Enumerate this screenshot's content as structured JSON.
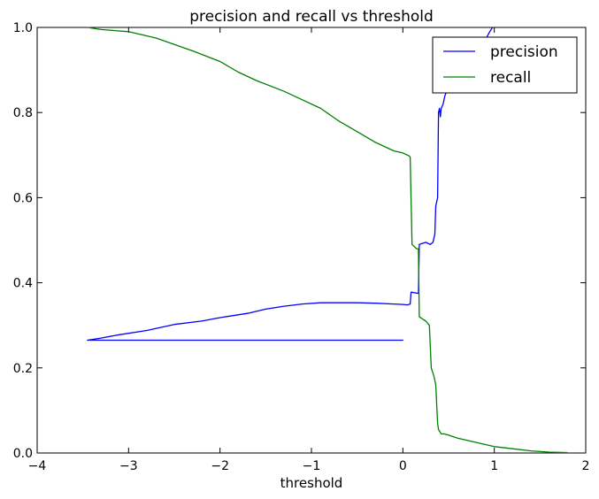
{
  "chart_data": {
    "type": "line",
    "title": "precision and recall vs threshold",
    "xlabel": "threshold",
    "ylabel": "",
    "xlim": [
      -4,
      2
    ],
    "ylim": [
      0.0,
      1.0
    ],
    "xticks": [
      -4,
      -3,
      -2,
      -1,
      0,
      1,
      2
    ],
    "yticks": [
      0.0,
      0.2,
      0.4,
      0.6,
      0.8,
      1.0
    ],
    "xtick_labels": [
      "−4",
      "−3",
      "−2",
      "−1",
      "0",
      "1",
      "2"
    ],
    "ytick_labels": [
      "0.0",
      "0.2",
      "0.4",
      "0.6",
      "0.8",
      "1.0"
    ],
    "grid": false,
    "legend_position": "top-right",
    "series": [
      {
        "name": "precision",
        "color": "#0000ff",
        "x": [
          -3.45,
          0.0,
          -3.45,
          -3.3,
          -3.1,
          -2.8,
          -2.5,
          -2.2,
          -2.0,
          -1.7,
          -1.5,
          -1.3,
          -1.1,
          -0.9,
          -0.7,
          -0.5,
          -0.3,
          -0.1,
          0.0,
          0.05,
          0.08,
          0.09,
          0.17,
          0.18,
          0.25,
          0.3,
          0.33,
          0.35,
          0.36,
          0.38,
          0.39,
          0.4,
          0.41,
          0.42,
          0.44,
          0.46,
          0.5,
          0.55,
          0.6,
          0.7,
          0.8,
          0.9,
          0.95,
          0.98
        ],
        "y": [
          0.265,
          0.265,
          0.265,
          0.27,
          0.278,
          0.288,
          0.302,
          0.31,
          0.318,
          0.328,
          0.338,
          0.345,
          0.35,
          0.353,
          0.353,
          0.353,
          0.352,
          0.35,
          0.349,
          0.348,
          0.35,
          0.378,
          0.375,
          0.49,
          0.495,
          0.49,
          0.495,
          0.515,
          0.58,
          0.6,
          0.8,
          0.81,
          0.79,
          0.81,
          0.82,
          0.84,
          0.86,
          0.88,
          0.9,
          0.92,
          0.95,
          0.97,
          0.99,
          1.0
        ]
      },
      {
        "name": "recall",
        "color": "#008000",
        "x": [
          -3.45,
          -3.3,
          -3.0,
          -2.7,
          -2.5,
          -2.3,
          -2.0,
          -1.8,
          -1.6,
          -1.3,
          -1.1,
          -0.9,
          -0.7,
          -0.5,
          -0.3,
          -0.1,
          0.0,
          0.07,
          0.08,
          0.1,
          0.15,
          0.17,
          0.18,
          0.25,
          0.29,
          0.31,
          0.34,
          0.36,
          0.38,
          0.39,
          0.42,
          0.45,
          0.5,
          0.6,
          0.7,
          0.8,
          0.9,
          1.0,
          1.2,
          1.4,
          1.6,
          1.8
        ],
        "y": [
          1.0,
          0.995,
          0.99,
          0.975,
          0.96,
          0.945,
          0.92,
          0.895,
          0.875,
          0.85,
          0.83,
          0.81,
          0.78,
          0.755,
          0.73,
          0.71,
          0.705,
          0.698,
          0.695,
          0.49,
          0.48,
          0.48,
          0.32,
          0.31,
          0.3,
          0.2,
          0.18,
          0.16,
          0.07,
          0.055,
          0.045,
          0.045,
          0.042,
          0.035,
          0.03,
          0.025,
          0.02,
          0.015,
          0.01,
          0.005,
          0.002,
          0.001
        ]
      }
    ]
  }
}
